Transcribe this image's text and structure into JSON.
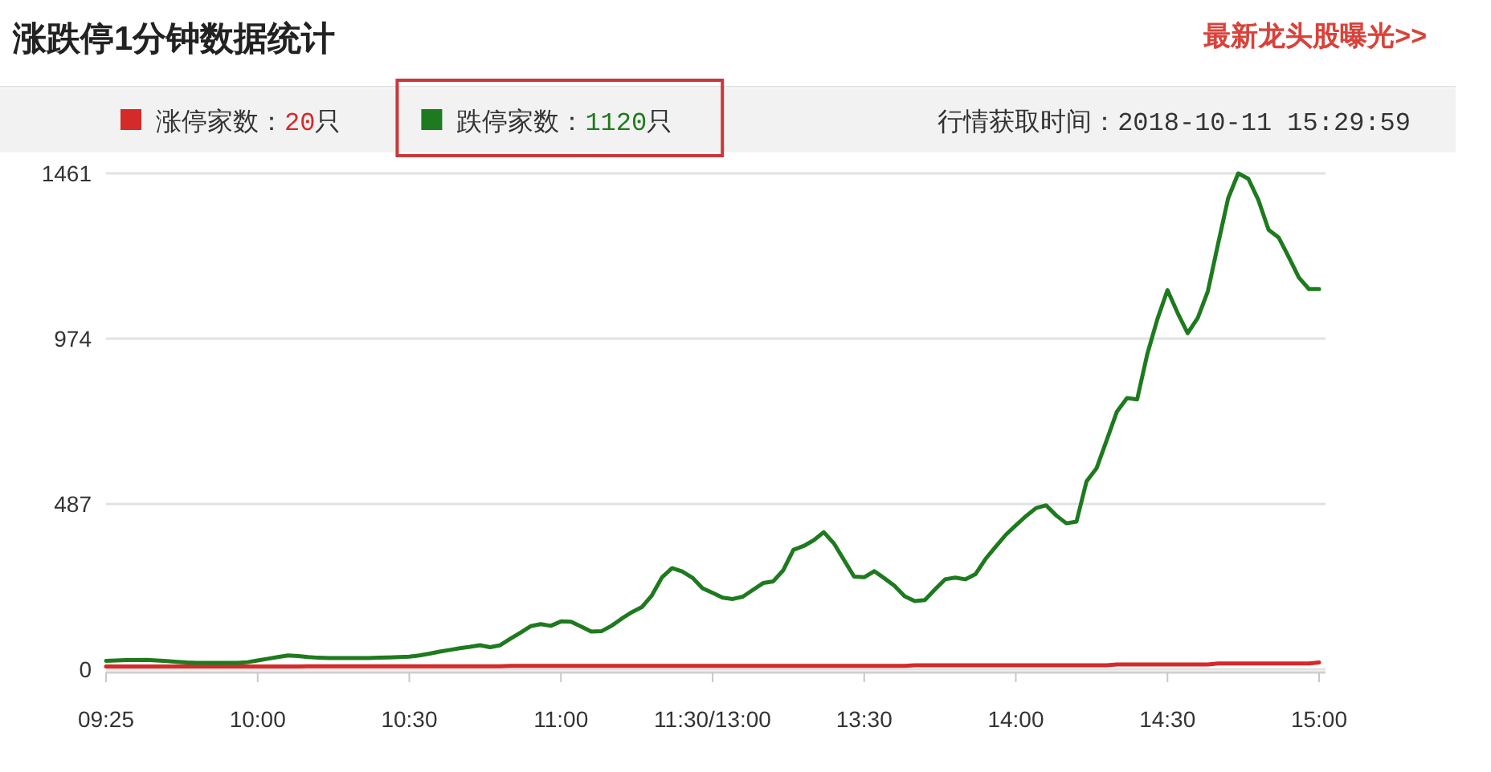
{
  "chart_data": {
    "type": "line",
    "title": "涨跌停1分钟数据统计",
    "annotations": [
      "最新龙头股曝光>>",
      "行情获取时间：2018-10-11 15:29:59"
    ],
    "categories": [
      "09:25",
      null,
      null,
      null,
      null,
      null,
      null,
      null,
      null,
      null,
      null,
      null,
      null,
      null,
      null,
      "10:00",
      null,
      null,
      null,
      null,
      null,
      null,
      null,
      null,
      null,
      null,
      null,
      null,
      null,
      null,
      "10:30",
      null,
      null,
      null,
      null,
      null,
      null,
      null,
      null,
      null,
      null,
      null,
      null,
      null,
      null,
      "11:00",
      null,
      null,
      null,
      null,
      null,
      null,
      null,
      null,
      null,
      null,
      null,
      null,
      null,
      null,
      "11:30/13:00",
      null,
      null,
      null,
      null,
      null,
      null,
      null,
      null,
      null,
      null,
      null,
      null,
      null,
      null,
      "13:30",
      null,
      null,
      null,
      null,
      null,
      null,
      null,
      null,
      null,
      null,
      null,
      null,
      null,
      null,
      "14:00",
      null,
      null,
      null,
      null,
      null,
      null,
      null,
      null,
      null,
      null,
      null,
      null,
      null,
      null,
      "14:30",
      null,
      null,
      null,
      null,
      null,
      null,
      null,
      null,
      null,
      null,
      null,
      null,
      null,
      null,
      "15:00"
    ],
    "ylim": [
      0,
      1461
    ],
    "yticks": [
      0,
      487,
      974,
      1461
    ],
    "grid": "y",
    "legend": "top",
    "series": [
      {
        "name": "涨停家数：20只",
        "color": "#d42a2a",
        "values": [
          8,
          8,
          8,
          8,
          8,
          8,
          8,
          8,
          8,
          8,
          8,
          8,
          8,
          8,
          8,
          8,
          8,
          8,
          8,
          8,
          9,
          9,
          9,
          9,
          9,
          9,
          9,
          9,
          9,
          9,
          9,
          9,
          9,
          9,
          9,
          9,
          9,
          9,
          9,
          9,
          10,
          10,
          10,
          10,
          10,
          10,
          10,
          10,
          10,
          10,
          10,
          10,
          10,
          10,
          10,
          10,
          10,
          10,
          10,
          10,
          10,
          10,
          10,
          10,
          10,
          10,
          10,
          10,
          10,
          10,
          10,
          10,
          10,
          10,
          10,
          10,
          10,
          10,
          10,
          10,
          12,
          12,
          12,
          12,
          12,
          12,
          12,
          12,
          12,
          12,
          12,
          12,
          12,
          12,
          12,
          12,
          12,
          12,
          12,
          12,
          14,
          14,
          14,
          14,
          14,
          14,
          14,
          14,
          14,
          14,
          17,
          17,
          17,
          17,
          17,
          17,
          17,
          17,
          17,
          17,
          20
        ]
      },
      {
        "name": "跌停家数：1120只",
        "color": "#1e7a1e",
        "values": [
          25,
          26,
          27,
          27,
          28,
          26,
          24,
          22,
          20,
          19,
          19,
          19,
          19,
          19,
          21,
          26,
          31,
          36,
          41,
          39,
          36,
          34,
          33,
          33,
          33,
          33,
          33,
          34,
          35,
          36,
          37,
          41,
          46,
          52,
          57,
          62,
          66,
          71,
          65,
          71,
          90,
          108,
          127,
          133,
          128,
          141,
          140,
          126,
          111,
          112,
          128,
          149,
          168,
          183,
          218,
          271,
          298,
          288,
          270,
          239,
          225,
          211,
          207,
          214,
          234,
          254,
          259,
          292,
          352,
          363,
          380,
          404,
          371,
          322,
          273,
          271,
          289,
          268,
          246,
          215,
          201,
          204,
          235,
          265,
          270,
          265,
          280,
          325,
          361,
          396,
          424,
          451,
          475,
          483,
          453,
          430,
          435,
          554,
          593,
          676,
          759,
          799,
          795,
          928,
          1031,
          1117,
          1050,
          990,
          1035,
          1114,
          1252,
          1387,
          1461,
          1445,
          1382,
          1295,
          1272,
          1214,
          1154,
          1120,
          1120
        ]
      }
    ]
  }
}
